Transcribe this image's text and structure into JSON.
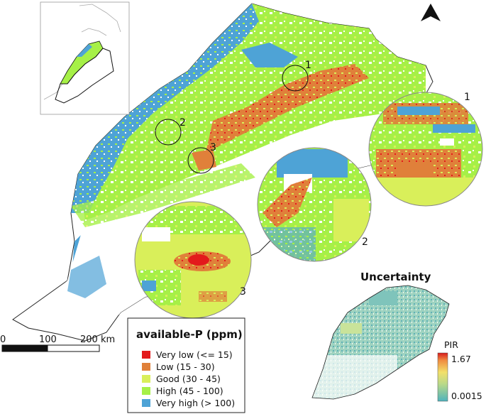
{
  "legend": {
    "title": "available-P (ppm)",
    "items": [
      {
        "label": "Very low (<= 15)",
        "color": "#e31a1c"
      },
      {
        "label": "Low (15 - 30)",
        "color": "#e0803a"
      },
      {
        "label": "Good (30 - 45)",
        "color": "#d9ef5a"
      },
      {
        "label": "High (45 - 100)",
        "color": "#a6f047"
      },
      {
        "label": "Very high (> 100)",
        "color": "#4ea3d6"
      }
    ]
  },
  "scalebar": {
    "labels": [
      "0",
      "100",
      "200 km"
    ]
  },
  "uncertainty": {
    "title": "Uncertainty",
    "ramp_label": "PIR",
    "max_label": "1.67",
    "min_label": "0.0015"
  },
  "zooms": [
    {
      "label": "1"
    },
    {
      "label": "2"
    },
    {
      "label": "3"
    }
  ],
  "map_markers": [
    {
      "label": "1"
    },
    {
      "label": "2"
    },
    {
      "label": "3"
    }
  ],
  "north_arrow": "north-arrow-icon"
}
